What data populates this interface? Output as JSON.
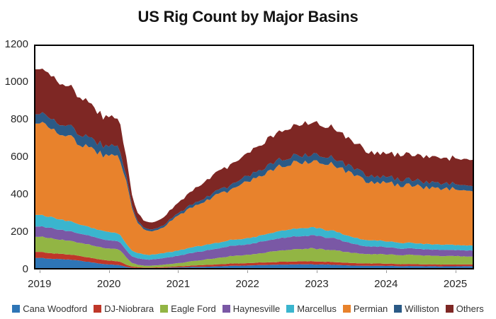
{
  "title": "US Rig Count by Major Basins",
  "chart_data": {
    "type": "area",
    "stacked": true,
    "title": "US Rig Count by Major Basins",
    "xlabel": "",
    "ylabel": "",
    "grid": false,
    "legend_position": "bottom",
    "xlim": [
      2018.92,
      2025.27
    ],
    "ylim": [
      0,
      1200
    ],
    "x_start": 2019.0,
    "x_step_months": 1,
    "x_end": 2025.25,
    "xticks": [
      2019,
      2020,
      2021,
      2022,
      2023,
      2024,
      2025
    ],
    "yticks": [
      0,
      200,
      400,
      600,
      800,
      1000,
      1200
    ],
    "series": [
      {
        "name": "Cana Woodford",
        "color": "#2E75B6",
        "values": [
          62,
          60,
          58,
          56,
          54,
          52,
          50,
          46,
          42,
          38,
          33,
          29,
          27,
          25,
          22,
          14,
          9,
          7,
          6,
          6,
          7,
          8,
          9,
          10,
          11,
          12,
          13,
          14,
          14,
          15,
          16,
          17,
          18,
          19,
          20,
          20,
          21,
          22,
          23,
          24,
          25,
          25,
          26,
          27,
          27,
          28,
          28,
          28,
          27,
          27,
          26,
          25,
          24,
          22,
          21,
          21,
          20,
          20,
          20,
          20,
          19,
          19,
          18,
          18,
          18,
          18,
          17,
          17,
          17,
          17,
          17,
          17,
          17,
          17,
          17,
          17
        ]
      },
      {
        "name": "DJ-Niobrara",
        "color": "#BF3729",
        "values": [
          32,
          31,
          30,
          29,
          28,
          27,
          26,
          25,
          24,
          23,
          22,
          22,
          21,
          20,
          18,
          12,
          7,
          5,
          4,
          4,
          4,
          4,
          5,
          5,
          6,
          6,
          7,
          8,
          9,
          10,
          10,
          11,
          11,
          12,
          12,
          12,
          13,
          13,
          14,
          14,
          14,
          14,
          15,
          15,
          15,
          16,
          16,
          16,
          16,
          15,
          15,
          15,
          14,
          14,
          14,
          13,
          13,
          12,
          12,
          12,
          12,
          12,
          11,
          11,
          11,
          11,
          10,
          10,
          10,
          10,
          10,
          10,
          10,
          10,
          10,
          10
        ]
      },
      {
        "name": "Eagle Ford",
        "color": "#92B544",
        "values": [
          80,
          79,
          78,
          77,
          76,
          74,
          72,
          70,
          69,
          68,
          67,
          66,
          65,
          64,
          60,
          38,
          20,
          13,
          11,
          10,
          11,
          12,
          13,
          15,
          17,
          19,
          22,
          25,
          27,
          30,
          32,
          35,
          37,
          39,
          41,
          42,
          44,
          46,
          48,
          52,
          55,
          58,
          60,
          62,
          64,
          66,
          67,
          68,
          67,
          66,
          65,
          63,
          61,
          58,
          55,
          53,
          51,
          50,
          50,
          50,
          49,
          49,
          48,
          48,
          48,
          48,
          47,
          47,
          46,
          46,
          45,
          45,
          44,
          43,
          42,
          42
        ]
      },
      {
        "name": "Haynesville",
        "color": "#7A58A5",
        "values": [
          55,
          54,
          54,
          53,
          52,
          51,
          50,
          49,
          48,
          47,
          46,
          45,
          44,
          43,
          41,
          38,
          36,
          35,
          33,
          32,
          33,
          35,
          36,
          38,
          40,
          42,
          44,
          45,
          46,
          48,
          49,
          50,
          52,
          53,
          54,
          55,
          57,
          59,
          61,
          63,
          64,
          65,
          66,
          67,
          68,
          69,
          70,
          70,
          69,
          68,
          66,
          63,
          60,
          55,
          50,
          46,
          43,
          41,
          40,
          40,
          38,
          37,
          36,
          35,
          35,
          34,
          34,
          33,
          33,
          32,
          32,
          32,
          32,
          32,
          32,
          32
        ]
      },
      {
        "name": "Marcellus",
        "color": "#3AB5CE",
        "values": [
          62,
          60,
          59,
          57,
          55,
          53,
          51,
          49,
          47,
          46,
          45,
          45,
          44,
          43,
          40,
          35,
          30,
          28,
          26,
          25,
          26,
          27,
          27,
          28,
          28,
          29,
          29,
          30,
          30,
          30,
          31,
          31,
          31,
          32,
          32,
          32,
          33,
          33,
          34,
          35,
          36,
          38,
          39,
          40,
          41,
          42,
          42,
          42,
          41,
          40,
          39,
          38,
          37,
          36,
          35,
          34,
          33,
          33,
          32,
          32,
          31,
          31,
          30,
          30,
          30,
          29,
          29,
          28,
          28,
          28,
          28,
          28,
          27,
          27,
          26,
          26
        ]
      },
      {
        "name": "Permian",
        "color": "#E8822C",
        "values": [
          487,
          480,
          472,
          465,
          458,
          450,
          443,
          435,
          428,
          420,
          412,
          405,
          403,
          404,
          400,
          330,
          230,
          160,
          135,
          125,
          128,
          135,
          148,
          172,
          187,
          198,
          212,
          222,
          230,
          237,
          246,
          254,
          262,
          270,
          280,
          290,
          298,
          307,
          318,
          327,
          335,
          343,
          346,
          347,
          348,
          350,
          353,
          355,
          356,
          356,
          355,
          352,
          348,
          342,
          335,
          327,
          320,
          314,
          311,
          310,
          309,
          308,
          307,
          306,
          306,
          305,
          304,
          304,
          303,
          302,
          301,
          300,
          298,
          295,
          292,
          290
        ]
      },
      {
        "name": "Williston",
        "color": "#2B5A86",
        "values": [
          50,
          51,
          52,
          53,
          54,
          55,
          55,
          55,
          54,
          53,
          52,
          51,
          51,
          52,
          50,
          30,
          15,
          11,
          10,
          10,
          10,
          11,
          11,
          12,
          13,
          14,
          15,
          16,
          17,
          18,
          20,
          21,
          23,
          25,
          26,
          28,
          30,
          31,
          32,
          33,
          34,
          36,
          36,
          37,
          37,
          38,
          38,
          38,
          38,
          37,
          37,
          36,
          36,
          35,
          35,
          34,
          34,
          33,
          33,
          32,
          32,
          31,
          31,
          30,
          30,
          30,
          29,
          29,
          29,
          28,
          28,
          28,
          28,
          28,
          28,
          28
        ]
      },
      {
        "name": "Others",
        "color": "#7E2724",
        "values": [
          240,
          237,
          233,
          228,
          222,
          215,
          207,
          198,
          188,
          178,
          167,
          157,
          152,
          150,
          145,
          95,
          55,
          42,
          37,
          35,
          37,
          40,
          44,
          50,
          57,
          63,
          70,
          76,
          82,
          90,
          96,
          101,
          106,
          110,
          113,
          115,
          120,
          126,
          132,
          138,
          144,
          150,
          155,
          159,
          163,
          166,
          168,
          170,
          168,
          166,
          163,
          158,
          152,
          145,
          140,
          136,
          132,
          128,
          126,
          125,
          127,
          129,
          131,
          133,
          134,
          135,
          135,
          136,
          136,
          136,
          135,
          135,
          136,
          137,
          138,
          140
        ]
      }
    ]
  }
}
